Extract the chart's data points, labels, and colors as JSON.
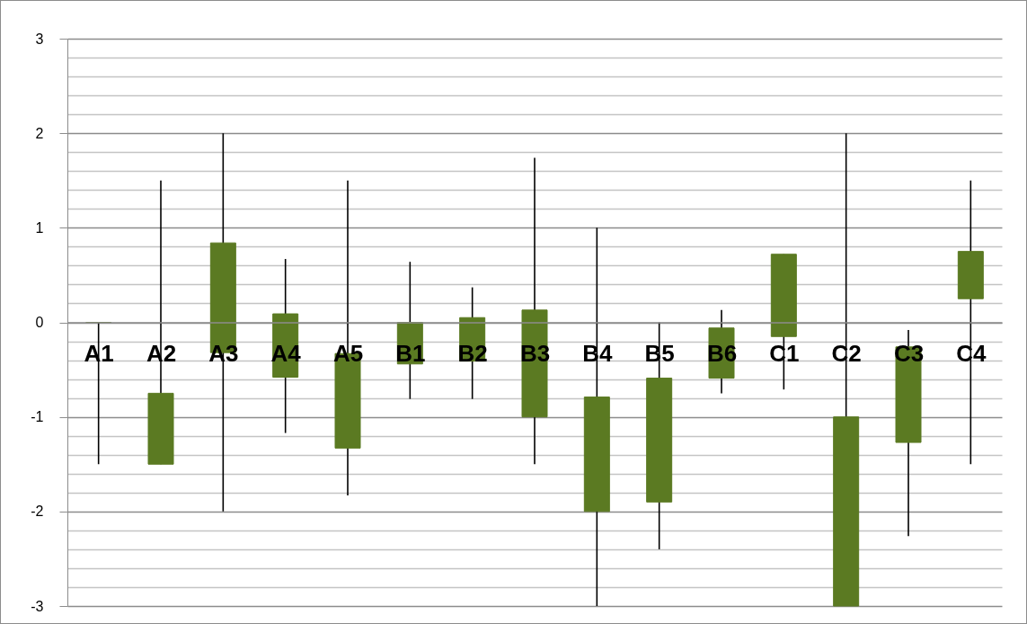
{
  "chart_data": {
    "type": "candlestick",
    "categories": [
      "A1",
      "A2",
      "A3",
      "A4",
      "A5",
      "B1",
      "B2",
      "B3",
      "B4",
      "B5",
      "B6",
      "C1",
      "C2",
      "C3",
      "C4"
    ],
    "ohlc": [
      [
        0,
        0,
        -1.5,
        0
      ],
      [
        -1.5,
        1.5,
        -1.5,
        -0.75
      ],
      [
        -0.32,
        2,
        -2,
        0.84
      ],
      [
        -0.58,
        0.67,
        -1.17,
        0.09
      ],
      [
        -1.33,
        1.5,
        -1.83,
        -0.33
      ],
      [
        -0.44,
        0.64,
        -0.81,
        0
      ],
      [
        -0.41,
        0.37,
        -0.81,
        0.05
      ],
      [
        -1,
        1.74,
        -1.5,
        0.13
      ],
      [
        -2,
        1,
        -3,
        -0.79
      ],
      [
        -1.9,
        0,
        -2.4,
        -0.59
      ],
      [
        -0.59,
        0.13,
        -0.75,
        -0.06
      ],
      [
        -0.15,
        0.72,
        -0.71,
        0.72
      ],
      [
        -3,
        2,
        -3,
        -1
      ],
      [
        -1.27,
        -0.08,
        -2.26,
        -0.26
      ],
      [
        0.25,
        1.5,
        -1.5,
        0.75
      ]
    ],
    "color": "#5b7a22",
    "ylim": [
      -3,
      3
    ],
    "yticks": [
      -3,
      {
        "value": -2.8,
        "label": null
      },
      {
        "value": -2.6,
        "label": null
      },
      {
        "value": -2.4,
        "label": null
      },
      {
        "value": -2.2,
        "label": null
      },
      -2,
      {
        "value": -1.8,
        "label": null
      },
      {
        "value": -1.6,
        "label": null
      },
      {
        "value": -1.4,
        "label": null
      },
      {
        "value": -1.2,
        "label": null
      },
      -1,
      {
        "value": -0.8,
        "label": null
      },
      {
        "value": -0.6,
        "label": null
      },
      {
        "value": -0.4,
        "label": null
      },
      {
        "value": -0.2,
        "label": null
      },
      0,
      {
        "value": 0.2,
        "label": null
      },
      {
        "value": 0.4,
        "label": null
      },
      {
        "value": 0.6,
        "label": null
      },
      {
        "value": 0.8,
        "label": null
      },
      1,
      {
        "value": 1.2,
        "label": null
      },
      {
        "value": 1.4,
        "label": null
      },
      {
        "value": 1.6,
        "label": null
      },
      {
        "value": 1.8,
        "label": null
      },
      2,
      {
        "value": 2.2,
        "label": null
      },
      {
        "value": 2.4,
        "label": null
      },
      {
        "value": 2.6,
        "label": null
      },
      {
        "value": 2.8,
        "label": null
      },
      3
    ],
    "grid": true
  }
}
